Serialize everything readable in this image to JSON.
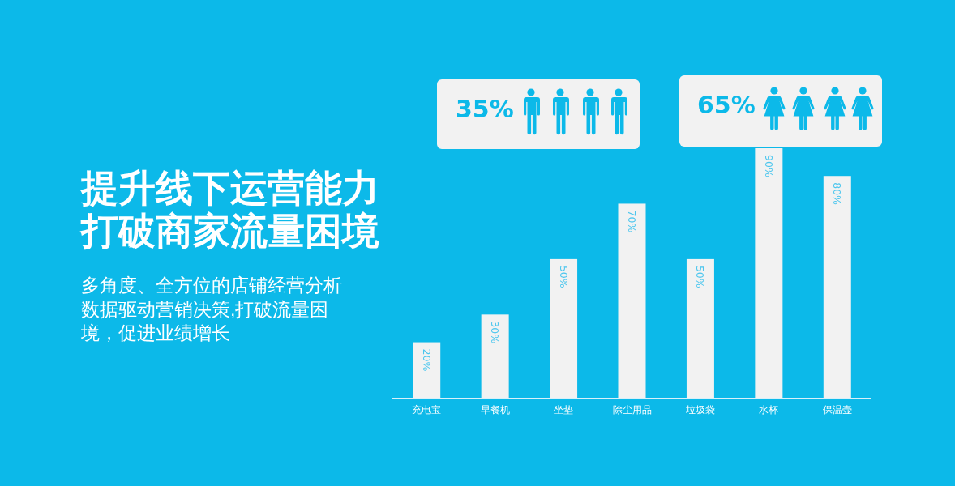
{
  "chart_data": {
    "type": "bar",
    "title": "提升线下运营能力打破商家流量困境",
    "subtitle": "多角度、全方位的店铺经营分析数据驱动营销决策,打破流量困境，促进业绩增长",
    "categories": [
      "充电宝",
      "早餐机",
      "坐垫",
      "除尘用品",
      "垃圾袋",
      "水杯",
      "保温壶"
    ],
    "values": [
      20,
      30,
      50,
      70,
      50,
      90,
      80
    ],
    "value_labels": [
      "20%",
      "30%",
      "50%",
      "70%",
      "50%",
      "90%",
      "80%"
    ],
    "color": "#f2f2f2",
    "annotations": [
      "35%",
      "65%"
    ]
  }
}
